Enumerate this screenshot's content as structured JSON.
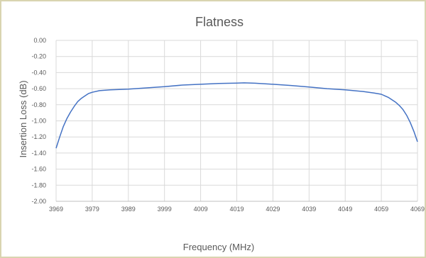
{
  "chart_data": {
    "type": "line",
    "title": "Flatness",
    "xlabel": "Frequency (MHz)",
    "ylabel": "Insertion Loss (dB)",
    "xlim": [
      3969,
      4069
    ],
    "ylim": [
      -2.0,
      0.0
    ],
    "x_ticks": [
      3969,
      3979,
      3989,
      3999,
      4009,
      4019,
      4029,
      4039,
      4049,
      4059,
      4069
    ],
    "y_ticks": [
      "0.00",
      "-0.20",
      "-0.40",
      "-0.60",
      "-0.80",
      "-1.00",
      "-1.20",
      "-1.40",
      "-1.60",
      "-1.80",
      "-2.00"
    ],
    "grid": {
      "x": true,
      "y": true
    },
    "legend": "none",
    "series": [
      {
        "color": "#4472C4",
        "x": [
          3969,
          3970,
          3971,
          3972,
          3973,
          3974,
          3975,
          3976,
          3977,
          3978,
          3979,
          3981,
          3984,
          3989,
          3994,
          3999,
          4004,
          4009,
          4014,
          4019,
          4021,
          4024,
          4029,
          4034,
          4039,
          4044,
          4049,
          4054,
          4057,
          4059,
          4060,
          4061,
          4062,
          4063,
          4064,
          4065,
          4066,
          4067,
          4068,
          4069
        ],
        "y": [
          -1.34,
          -1.2,
          -1.07,
          -0.97,
          -0.89,
          -0.82,
          -0.76,
          -0.72,
          -0.69,
          -0.66,
          -0.645,
          -0.625,
          -0.615,
          -0.605,
          -0.59,
          -0.575,
          -0.555,
          -0.545,
          -0.535,
          -0.53,
          -0.528,
          -0.532,
          -0.545,
          -0.56,
          -0.58,
          -0.6,
          -0.615,
          -0.635,
          -0.655,
          -0.67,
          -0.69,
          -0.71,
          -0.74,
          -0.77,
          -0.81,
          -0.86,
          -0.93,
          -1.02,
          -1.13,
          -1.26
        ]
      }
    ]
  }
}
